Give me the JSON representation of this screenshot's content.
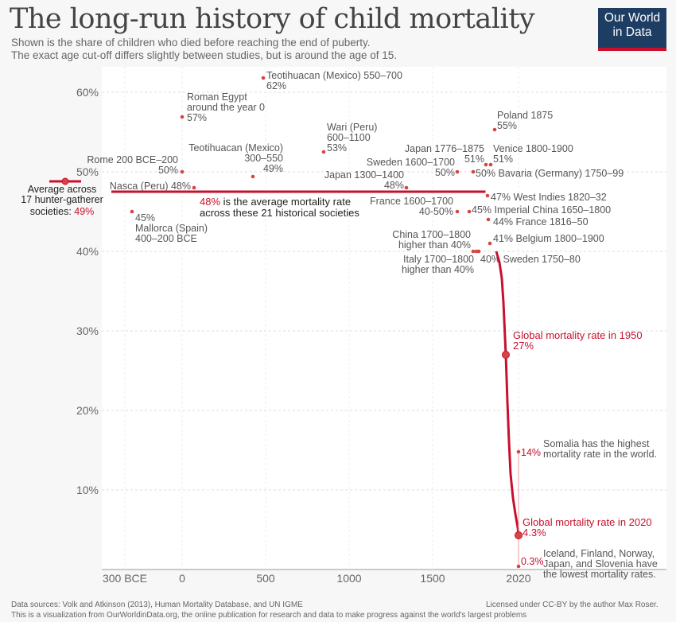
{
  "header": {
    "title": "The long-run history of child mortality",
    "subtitle_line1": "Shown is the share of children who died before reaching the end of puberty.",
    "subtitle_line2": "The exact age cut-off differs slightly between studies, but is around the age of 15."
  },
  "logo": {
    "line1": "Our World",
    "line2": "in Data"
  },
  "footer": {
    "sources": "Data sources: Volk and Atkinson (2013), Human Mortality Database, and UN IGME",
    "about": "This is a visualization from OurWorldinData.org, the online publication for research and data to make progress against the world's largest problems",
    "license": "Licensed under CC-BY by the author Max Roser."
  },
  "colors": {
    "accent": "#c8102e",
    "point": "#d64541",
    "text": "#555555"
  },
  "chart_data": {
    "type": "scatter",
    "ylim": [
      0,
      62
    ],
    "yticks": [
      10,
      20,
      30,
      40,
      50,
      60
    ],
    "ytick_labels": [
      "10%",
      "20%",
      "30%",
      "40%",
      "50%",
      "60%"
    ],
    "xticks": [
      -300,
      0,
      500,
      1000,
      1500,
      2020
    ],
    "xtick_labels": [
      "300 BCE",
      "0",
      "500",
      "1000",
      "1500",
      "2020"
    ],
    "grid": true,
    "points": [
      {
        "x": 600,
        "y": 62,
        "label": [
          "Teotihuacan (Mexico) 550–700",
          "62%"
        ]
      },
      {
        "x": 0,
        "y": 57,
        "label": [
          "Roman Egypt",
          "around the year 0",
          "57%"
        ]
      },
      {
        "x": 1875,
        "y": 55,
        "label": [
          "Poland 1875",
          "55%"
        ]
      },
      {
        "x": 850,
        "y": 53,
        "label": [
          "Wari (Peru)",
          "600–1100",
          "53%"
        ]
      },
      {
        "x": 0,
        "y": 50,
        "label": [
          "Rome 200 BCE–200",
          "50%"
        ]
      },
      {
        "x": 425,
        "y": 49,
        "label": [
          "Teotihuacan (Mexico)",
          "300–550",
          "49%"
        ]
      },
      {
        "x": 1350,
        "y": 48,
        "label": [
          "Japan 1300–1400",
          "48%"
        ]
      },
      {
        "x": 100,
        "y": 48,
        "label": [
          "Nasca (Peru) 48%"
        ]
      },
      {
        "x": 1650,
        "y": 50,
        "label": [
          "Sweden 1600–1700",
          "50%"
        ]
      },
      {
        "x": 1825,
        "y": 51,
        "label": [
          "Japan 1776–1875",
          "51%"
        ]
      },
      {
        "x": 1850,
        "y": 51,
        "label": [
          "Venice 1800-1900",
          "51%"
        ]
      },
      {
        "x": 1765,
        "y": 50,
        "label": [
          "50% Bavaria (Germany) 1750–99"
        ]
      },
      {
        "x": 1820,
        "y": 47,
        "label": [
          "47% West Indies 1820–32"
        ]
      },
      {
        "x": 1650,
        "y": 45,
        "label": [
          "France 1600–1700",
          "40-50%"
        ]
      },
      {
        "x": 1725,
        "y": 45,
        "label": [
          "45% Imperial China 1650–1800"
        ]
      },
      {
        "x": 1830,
        "y": 44,
        "label": [
          "44% France 1816–50"
        ]
      },
      {
        "x": -300,
        "y": 45,
        "label": [
          "45%",
          "Mallorca (Spain)",
          "400–200 BCE"
        ]
      },
      {
        "x": 1850,
        "y": 41,
        "label": [
          "41% Belgium 1800–1900"
        ]
      },
      {
        "x": 1750,
        "y": 40,
        "label": [
          "China 1700–1800",
          "higher than 40%"
        ]
      },
      {
        "x": 1785,
        "y": 40,
        "label": [
          "Italy 1700–1800",
          "higher than 40%"
        ]
      },
      {
        "x": 1795,
        "y": 40,
        "label": [
          "40% Sweden 1750–80"
        ]
      }
    ],
    "average_line": {
      "value": 48,
      "label_value": "48%",
      "label_rest": "is the average mortality rate",
      "label_line2": "across these 21 historical societies"
    },
    "hunter_gatherer": {
      "value": 49,
      "label1": "Average across",
      "label2": "17 hunter-gatherer",
      "label3": "societies:",
      "label_value": "49%"
    },
    "global_series": [
      {
        "x": 1800,
        "y": 43.3
      },
      {
        "x": 1850,
        "y": 41
      },
      {
        "x": 1900,
        "y": 36
      },
      {
        "x": 1925,
        "y": 31
      },
      {
        "x": 1950,
        "y": 27
      },
      {
        "x": 1960,
        "y": 21
      },
      {
        "x": 1970,
        "y": 16
      },
      {
        "x": 1980,
        "y": 12
      },
      {
        "x": 1990,
        "y": 9
      },
      {
        "x": 2000,
        "y": 7
      },
      {
        "x": 2010,
        "y": 5.3
      },
      {
        "x": 2020,
        "y": 4.3
      }
    ],
    "global_1950": {
      "x": 1950,
      "y": 27,
      "label": [
        "Global mortality rate in 1950",
        "27%"
      ]
    },
    "global_2020": {
      "x": 2020,
      "y": 4.3,
      "label": [
        "Global mortality rate in 2020",
        "4.3%"
      ]
    },
    "range_2020": {
      "x": 2020,
      "high": 14,
      "low": 0.3,
      "high_label": "14%",
      "low_label": "0.3%",
      "high_note": [
        "Somalia has the highest",
        "mortality rate in the world."
      ],
      "low_note": [
        "Iceland, Finland, Norway,",
        "Japan, and Slovenia have",
        "the lowest mortality rates."
      ]
    }
  }
}
